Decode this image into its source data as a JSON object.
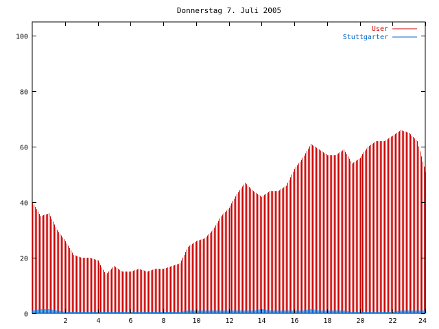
{
  "chart_data": {
    "type": "bar",
    "title": "Donnerstag 7. Juli 2005",
    "xlabel": "",
    "ylabel": "",
    "xlim": [
      0,
      24
    ],
    "ylim": [
      0,
      105
    ],
    "x_ticks": [
      2,
      4,
      6,
      8,
      10,
      12,
      14,
      16,
      18,
      20,
      22,
      24
    ],
    "y_ticks": [
      0,
      20,
      40,
      60,
      80,
      100
    ],
    "grid": false,
    "legend_position": "top-right",
    "series": [
      {
        "name": "User",
        "color": "#cc0000",
        "x": [
          0,
          0.5,
          1,
          1.5,
          2,
          2.5,
          3,
          3.5,
          4,
          4.5,
          5,
          5.5,
          6,
          6.5,
          7,
          7.5,
          8,
          8.5,
          9,
          9.5,
          10,
          10.5,
          11,
          11.5,
          12,
          12.5,
          13,
          13.5,
          14,
          14.5,
          15,
          15.5,
          16,
          16.5,
          17,
          17.5,
          18,
          18.5,
          19,
          19.5,
          20,
          20.5,
          21,
          21.5,
          22,
          22.5,
          23,
          23.5,
          24
        ],
        "values": [
          40,
          35,
          36,
          30,
          26,
          21,
          20,
          20,
          19,
          14,
          17,
          15,
          15,
          16,
          15,
          16,
          16,
          17,
          18,
          24,
          26,
          27,
          30,
          35,
          38,
          43,
          47,
          44,
          42,
          44,
          44,
          46,
          52,
          56,
          61,
          59,
          57,
          57,
          59,
          54,
          56,
          60,
          62,
          62,
          64,
          66,
          65,
          62,
          51
        ]
      },
      {
        "name": "Stuttgarter",
        "color": "#0066cc",
        "x": [
          0,
          0.5,
          1,
          1.5,
          2,
          2.5,
          3,
          3.5,
          4,
          4.5,
          5,
          5.5,
          6,
          6.5,
          7,
          7.5,
          8,
          8.5,
          9,
          9.5,
          10,
          10.5,
          11,
          11.5,
          12,
          12.5,
          13,
          13.5,
          14,
          14.5,
          15,
          15.5,
          16,
          16.5,
          17,
          17.5,
          18,
          18.5,
          19,
          19.5,
          20,
          20.5,
          21,
          21.5,
          22,
          22.5,
          23,
          23.5,
          24
        ],
        "values": [
          1,
          1.5,
          1.5,
          1,
          0.5,
          0.5,
          0.5,
          0.5,
          0.5,
          0.5,
          0.5,
          0.5,
          0.5,
          0.5,
          0.5,
          0.5,
          0.5,
          0.5,
          0.5,
          1,
          1,
          1,
          1,
          1,
          1,
          1,
          1,
          1,
          1.5,
          1,
          1,
          1,
          1,
          1,
          1.5,
          1,
          1,
          1,
          1,
          0.5,
          0.5,
          0.5,
          0.5,
          0.5,
          0.5,
          1,
          1,
          1,
          1
        ]
      }
    ]
  }
}
